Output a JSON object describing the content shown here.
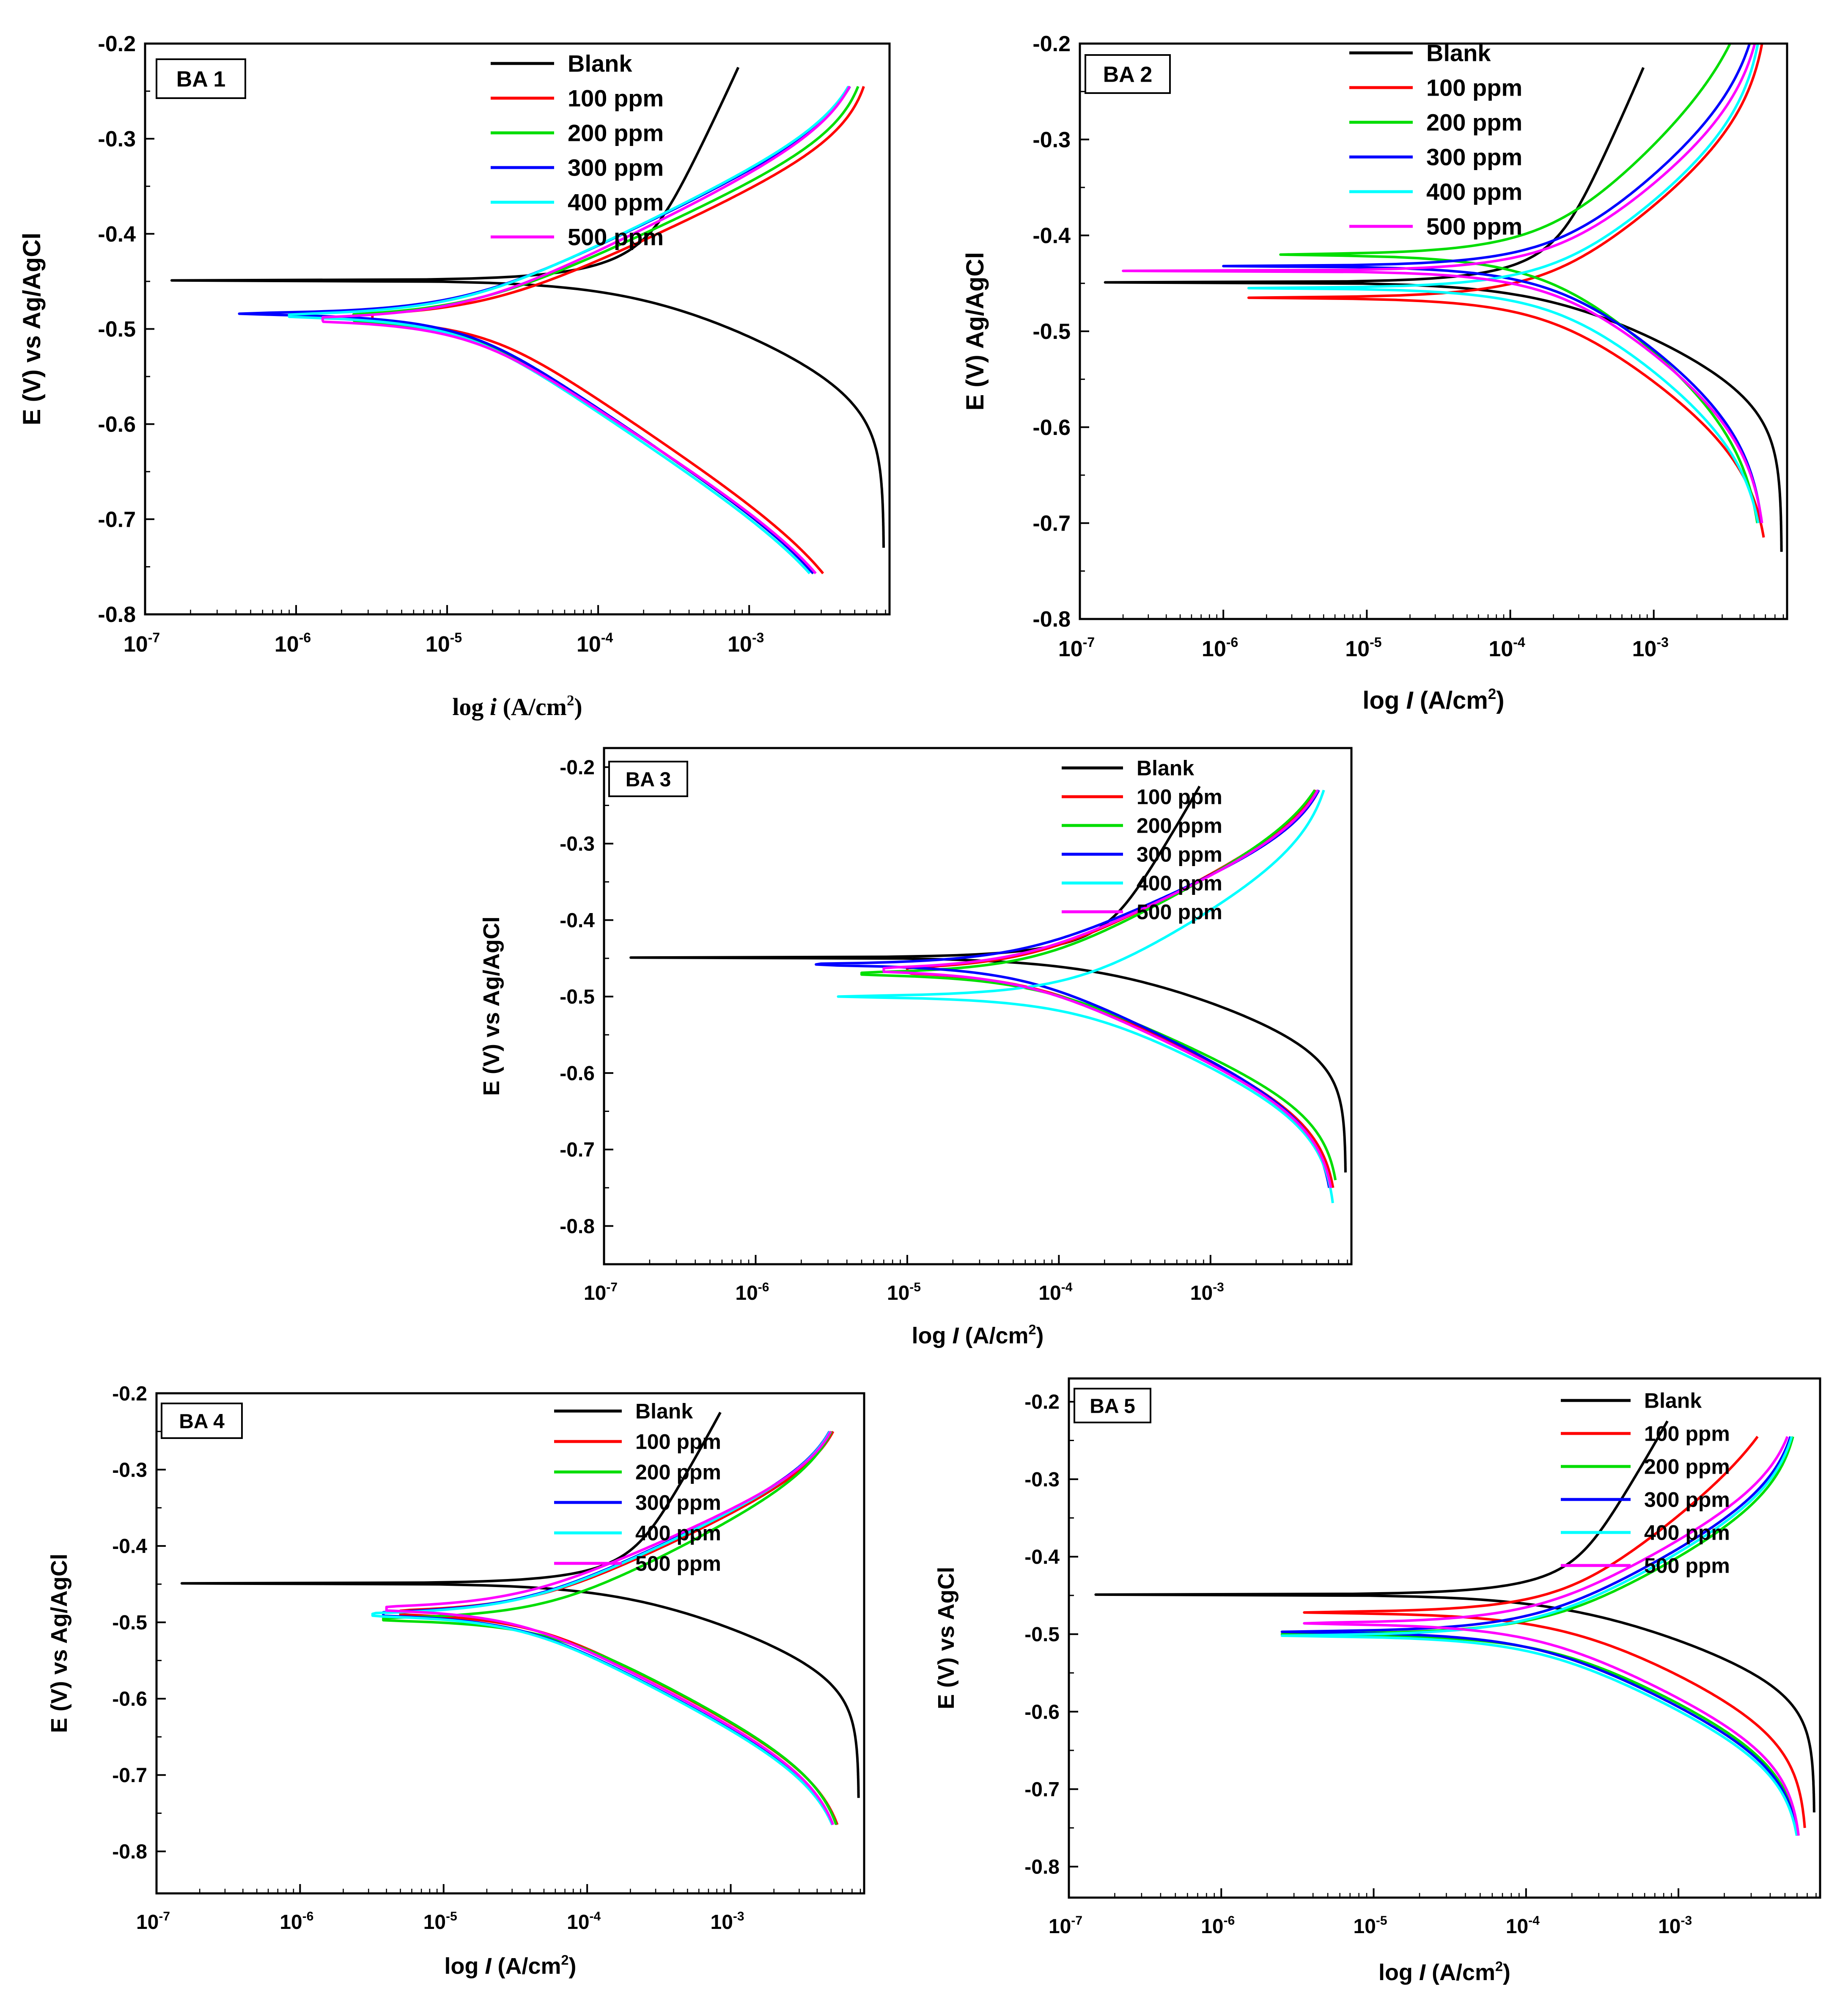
{
  "chart_data": [
    {
      "type": "line",
      "id": "ba1",
      "panel_label": "BA 1",
      "xlabel_prefix": "log ",
      "xlabel_var": "i",
      "xlabel_unit": " (A/cm",
      "xlabel_sup": "2",
      "xlabel_close": ")",
      "xlabel_serif": true,
      "ylabel": "E (V) vs Ag/AgCl",
      "xscale": "log",
      "xlim": [
        1e-07,
        0.0085
      ],
      "ylim": [
        -0.8,
        -0.2
      ],
      "yticks": [
        "-0.2",
        "-0.3",
        "-0.4",
        "-0.5",
        "-0.6",
        "-0.7",
        "-0.8"
      ],
      "xtick_bases": [
        "10",
        "10",
        "10",
        "10",
        "10"
      ],
      "xtick_exps": [
        "-7",
        "-6",
        "-5",
        "-4",
        "-3"
      ],
      "legend_position": "top-center",
      "series": [
        {
          "name": "Blank",
          "color": "#000000",
          "ecorr": -0.449,
          "icorr": 0.00018,
          "ba": 0.31,
          "bc": 0.07,
          "imin": 1.5e-07,
          "ilim": 0.0078,
          "emin": -0.73,
          "emax": -0.225
        },
        {
          "name": "100 ppm",
          "color": "#ff0000",
          "ecorr": -0.488,
          "icorr": 1.55e-05,
          "ba": 0.072,
          "bc": 0.105,
          "imin": 3.2e-06,
          "ilim": 0.0068,
          "emin": -0.757,
          "emax": -0.245
        },
        {
          "name": "200 ppm",
          "color": "#00dd00",
          "ecorr": -0.488,
          "icorr": 1.25e-05,
          "ba": 0.072,
          "bc": 0.105,
          "imin": 2.4e-06,
          "ilim": 0.0064,
          "emin": -0.757,
          "emax": -0.245
        },
        {
          "name": "300 ppm",
          "color": "#0000ff",
          "ecorr": -0.484,
          "icorr": 1.15e-05,
          "ba": 0.075,
          "bc": 0.105,
          "imin": 4.2e-07,
          "ilim": 0.0063,
          "emin": -0.757,
          "emax": -0.245
        },
        {
          "name": "400 ppm",
          "color": "#00ffff",
          "ecorr": -0.486,
          "icorr": 1.1e-05,
          "ba": 0.076,
          "bc": 0.105,
          "imin": 9e-07,
          "ilim": 0.0063,
          "emin": -0.757,
          "emax": -0.245
        },
        {
          "name": "500 ppm",
          "color": "#ff00ff",
          "ecorr": -0.49,
          "icorr": 1.2e-05,
          "ba": 0.077,
          "bc": 0.102,
          "imin": 1.5e-06,
          "ilim": 0.0062,
          "emin": -0.757,
          "emax": -0.245
        }
      ]
    },
    {
      "type": "line",
      "id": "ba2",
      "panel_label": "BA 2",
      "xlabel_prefix": "log ",
      "xlabel_var": "I",
      "xlabel_unit": " (A/cm",
      "xlabel_sup": "2",
      "xlabel_close": ")",
      "xlabel_serif": false,
      "ylabel": "E (V) Ag/AgCl",
      "xscale": "log",
      "xlim": [
        1e-07,
        0.0085
      ],
      "ylim": [
        -0.8,
        -0.2
      ],
      "yticks": [
        "-0.2",
        "-0.3",
        "-0.4",
        "-0.5",
        "-0.6",
        "-0.7",
        "-0.8"
      ],
      "xtick_bases": [
        "10",
        "10",
        "10",
        "10",
        "10"
      ],
      "xtick_exps": [
        "-7",
        "-6",
        "-5",
        "-4",
        "-3"
      ],
      "legend_position": "top-center",
      "series": [
        {
          "name": "Blank",
          "color": "#000000",
          "ecorr": -0.449,
          "icorr": 0.00018,
          "ba": 0.31,
          "bc": 0.07,
          "imin": 1.5e-07,
          "ilim": 0.0078,
          "emin": -0.73,
          "emax": -0.225
        },
        {
          "name": "100 ppm",
          "color": "#ff0000",
          "ecorr": -0.465,
          "icorr": 0.00016,
          "ba": 0.11,
          "bc": 0.1,
          "imin": 1.5e-06,
          "ilim": 0.0066,
          "emin": -0.715,
          "emax": -0.2
        },
        {
          "name": "200 ppm",
          "color": "#00dd00",
          "ecorr": -0.42,
          "icorr": 0.00016,
          "ba": 0.13,
          "bc": 0.115,
          "imin": 2.5e-06,
          "ilim": 0.006,
          "emin": -0.7,
          "emax": -0.2
        },
        {
          "name": "300 ppm",
          "color": "#0000ff",
          "ecorr": -0.432,
          "icorr": 0.00018,
          "ba": 0.115,
          "bc": 0.105,
          "imin": 1e-06,
          "ilim": 0.0062,
          "emin": -0.7,
          "emax": -0.2
        },
        {
          "name": "400 ppm",
          "color": "#00ffff",
          "ecorr": -0.455,
          "icorr": 0.00018,
          "ba": 0.11,
          "bc": 0.105,
          "imin": 1.5e-06,
          "ilim": 0.0062,
          "emin": -0.7,
          "emax": -0.2
        },
        {
          "name": "500 ppm",
          "color": "#ff00ff",
          "ecorr": -0.437,
          "icorr": 0.00018,
          "ba": 0.11,
          "bc": 0.105,
          "imin": 2e-07,
          "ilim": 0.0063,
          "emin": -0.7,
          "emax": -0.2
        }
      ]
    },
    {
      "type": "line",
      "id": "ba3",
      "panel_label": "BA 3",
      "xlabel_prefix": "log ",
      "xlabel_var": "I",
      "xlabel_unit": " (A/cm",
      "xlabel_sup": "2",
      "xlabel_close": ")",
      "xlabel_serif": false,
      "ylabel": "E (V) vs Ag/AgCl",
      "xscale": "log",
      "xlim": [
        1e-07,
        0.0085
      ],
      "ylim": [
        -0.85,
        -0.175
      ],
      "yticks": [
        "-0.2",
        "-0.3",
        "-0.4",
        "-0.5",
        "-0.6",
        "-0.7",
        "-0.8"
      ],
      "xtick_bases": [
        "10",
        "10",
        "10",
        "10",
        "10"
      ],
      "xtick_exps": [
        "-7",
        "-6",
        "-5",
        "-4",
        "-3"
      ],
      "legend_position": "top-center",
      "series": [
        {
          "name": "Blank",
          "color": "#000000",
          "ecorr": -0.449,
          "icorr": 0.00018,
          "ba": 0.31,
          "bc": 0.07,
          "imin": 1.5e-07,
          "ilim": 0.0078,
          "emin": -0.73,
          "emax": -0.225
        },
        {
          "name": "100 ppm",
          "color": "#ff0000",
          "ecorr": -0.466,
          "icorr": 5.5e-05,
          "ba": 0.095,
          "bc": 0.09,
          "imin": 1e-05,
          "ilim": 0.007,
          "emin": -0.75,
          "emax": -0.23
        },
        {
          "name": "200 ppm",
          "color": "#00dd00",
          "ecorr": -0.47,
          "icorr": 6e-05,
          "ba": 0.1,
          "bc": 0.085,
          "imin": 5e-06,
          "ilim": 0.0072,
          "emin": -0.74,
          "emax": -0.23
        },
        {
          "name": "300 ppm",
          "color": "#0000ff",
          "ecorr": -0.458,
          "icorr": 5e-05,
          "ba": 0.085,
          "bc": 0.092,
          "imin": 2.5e-06,
          "ilim": 0.0066,
          "emin": -0.75,
          "emax": -0.23
        },
        {
          "name": "400 ppm",
          "color": "#00ffff",
          "ecorr": -0.5,
          "icorr": 0.00011,
          "ba": 0.11,
          "bc": 0.09,
          "imin": 3.5e-06,
          "ilim": 0.0068,
          "emin": -0.77,
          "emax": -0.23
        },
        {
          "name": "500 ppm",
          "color": "#ff00ff",
          "ecorr": -0.465,
          "icorr": 5e-05,
          "ba": 0.09,
          "bc": 0.09,
          "imin": 7e-06,
          "ilim": 0.0068,
          "emin": -0.75,
          "emax": -0.23
        }
      ]
    },
    {
      "type": "line",
      "id": "ba4",
      "panel_label": "BA 4",
      "xlabel_prefix": "log ",
      "xlabel_var": "I",
      "xlabel_unit": " (A/cm",
      "xlabel_sup": "2",
      "xlabel_close": ")",
      "xlabel_serif": false,
      "ylabel": "E (V) vs Ag/AgCl",
      "xscale": "log",
      "xlim": [
        1e-07,
        0.0085
      ],
      "ylim": [
        -0.855,
        -0.2
      ],
      "yticks": [
        "-0.2",
        "-0.3",
        "-0.4",
        "-0.5",
        "-0.6",
        "-0.7",
        "-0.8"
      ],
      "xtick_bases": [
        "10",
        "10",
        "10",
        "10",
        "10"
      ],
      "xtick_exps": [
        "-7",
        "-6",
        "-5",
        "-4",
        "-3"
      ],
      "legend_position": "top-center",
      "series": [
        {
          "name": "Blank",
          "color": "#000000",
          "ecorr": -0.449,
          "icorr": 0.00018,
          "ba": 0.31,
          "bc": 0.07,
          "imin": 1.5e-07,
          "ilim": 0.0078,
          "emin": -0.73,
          "emax": -0.225
        },
        {
          "name": "100 ppm",
          "color": "#ff0000",
          "ecorr": -0.487,
          "icorr": 3.5e-05,
          "ba": 0.085,
          "bc": 0.095,
          "imin": 5e-06,
          "ilim": 0.0068,
          "emin": -0.765,
          "emax": -0.25
        },
        {
          "name": "200 ppm",
          "color": "#00dd00",
          "ecorr": -0.496,
          "icorr": 4.5e-05,
          "ba": 0.092,
          "bc": 0.095,
          "imin": 3.8e-06,
          "ilim": 0.0066,
          "emin": -0.765,
          "emax": -0.25
        },
        {
          "name": "300 ppm",
          "color": "#0000ff",
          "ecorr": -0.489,
          "icorr": 3e-05,
          "ba": 0.085,
          "bc": 0.095,
          "imin": 3.8e-06,
          "ilim": 0.0065,
          "emin": -0.765,
          "emax": -0.25
        },
        {
          "name": "400 ppm",
          "color": "#00ffff",
          "ecorr": -0.49,
          "icorr": 3e-05,
          "ba": 0.085,
          "bc": 0.095,
          "imin": 3.2e-06,
          "ilim": 0.0065,
          "emin": -0.765,
          "emax": -0.25
        },
        {
          "name": "500 ppm",
          "color": "#ff00ff",
          "ecorr": -0.482,
          "icorr": 2.8e-05,
          "ba": 0.08,
          "bc": 0.095,
          "imin": 4e-06,
          "ilim": 0.0064,
          "emin": -0.765,
          "emax": -0.25
        }
      ]
    },
    {
      "type": "line",
      "id": "ba5",
      "panel_label": "BA 5",
      "xlabel_prefix": "log ",
      "xlabel_var": "I",
      "xlabel_unit": " (A/cm",
      "xlabel_sup": "2",
      "xlabel_close": ")",
      "xlabel_serif": false,
      "ylabel": "E (V) vs AgCl",
      "xscale": "log",
      "xlim": [
        1e-07,
        0.0085
      ],
      "ylim": [
        -0.84,
        -0.17
      ],
      "yticks": [
        "-0.2",
        "-0.3",
        "-0.4",
        "-0.5",
        "-0.6",
        "-0.7",
        "-0.8"
      ],
      "xtick_bases": [
        "10",
        "10",
        "10",
        "10",
        "10"
      ],
      "xtick_exps": [
        "-7",
        "-6",
        "-5",
        "-4",
        "-3"
      ],
      "legend_position": "top-right",
      "series": [
        {
          "name": "Blank",
          "color": "#000000",
          "ecorr": -0.449,
          "icorr": 0.00018,
          "ba": 0.31,
          "bc": 0.07,
          "imin": 1.5e-07,
          "ilim": 0.0078,
          "emin": -0.73,
          "emax": -0.225
        },
        {
          "name": "100 ppm",
          "color": "#ff0000",
          "ecorr": -0.472,
          "icorr": 0.00015,
          "ba": 0.14,
          "bc": 0.09,
          "imin": 3.5e-06,
          "ilim": 0.007,
          "emin": -0.75,
          "emax": -0.245
        },
        {
          "name": "200 ppm",
          "color": "#00dd00",
          "ecorr": -0.5,
          "icorr": 0.00012,
          "ba": 0.1,
          "bc": 0.09,
          "imin": 2.5e-06,
          "ilim": 0.0065,
          "emin": -0.75,
          "emax": -0.245
        },
        {
          "name": "300 ppm",
          "color": "#0000ff",
          "ecorr": -0.497,
          "icorr": 0.0001,
          "ba": 0.1,
          "bc": 0.09,
          "imin": 2.5e-06,
          "ilim": 0.0065,
          "emin": -0.76,
          "emax": -0.245
        },
        {
          "name": "400 ppm",
          "color": "#00ffff",
          "ecorr": -0.502,
          "icorr": 0.0001,
          "ba": 0.1,
          "bc": 0.09,
          "imin": 2.5e-06,
          "ilim": 0.0065,
          "emin": -0.76,
          "emax": -0.245
        },
        {
          "name": "500 ppm",
          "color": "#ff00ff",
          "ecorr": -0.486,
          "icorr": 0.0001,
          "ba": 0.1,
          "bc": 0.09,
          "imin": 3.5e-06,
          "ilim": 0.0065,
          "emin": -0.76,
          "emax": -0.245
        }
      ]
    }
  ]
}
